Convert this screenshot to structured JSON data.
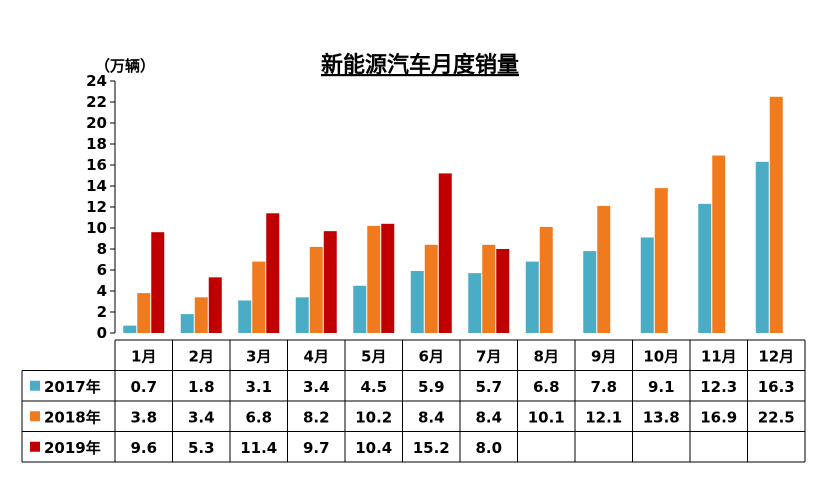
{
  "chart_data": {
    "type": "bar",
    "title": "新能源汽车月度销量",
    "unit_label": "（万辆）",
    "categories": [
      "1月",
      "2月",
      "3月",
      "4月",
      "5月",
      "6月",
      "7月",
      "8月",
      "9月",
      "10月",
      "11月",
      "12月"
    ],
    "ylim": [
      0,
      24
    ],
    "yticks": [
      "0",
      "2",
      "4",
      "6",
      "8",
      "10",
      "12",
      "14",
      "16",
      "18",
      "20",
      "22",
      "24"
    ],
    "series": [
      {
        "name": "2017年",
        "color": "#4bacc6",
        "values": [
          0.7,
          1.8,
          3.1,
          3.4,
          4.5,
          5.9,
          5.7,
          6.8,
          7.8,
          9.1,
          12.3,
          16.3
        ],
        "labels": [
          "0.7",
          "1.8",
          "3.1",
          "3.4",
          "4.5",
          "5.9",
          "5.7",
          "6.8",
          "7.8",
          "9.1",
          "12.3",
          "16.3"
        ]
      },
      {
        "name": "2018年",
        "color": "#f07b1e",
        "values": [
          3.8,
          3.4,
          6.8,
          8.2,
          10.2,
          8.4,
          8.4,
          10.1,
          12.1,
          13.8,
          16.9,
          22.5
        ],
        "labels": [
          "3.8",
          "3.4",
          "6.8",
          "8.2",
          "10.2",
          "8.4",
          "8.4",
          "10.1",
          "12.1",
          "13.8",
          "16.9",
          "22.5"
        ]
      },
      {
        "name": "2019年",
        "color": "#c00000",
        "values": [
          9.6,
          5.3,
          11.4,
          9.7,
          10.4,
          15.2,
          8.0,
          null,
          null,
          null,
          null,
          null
        ],
        "labels": [
          "9.6",
          "5.3",
          "11.4",
          "9.7",
          "10.4",
          "15.2",
          "8.0",
          "",
          "",
          "",
          "",
          ""
        ]
      }
    ],
    "legend": "data-table"
  }
}
